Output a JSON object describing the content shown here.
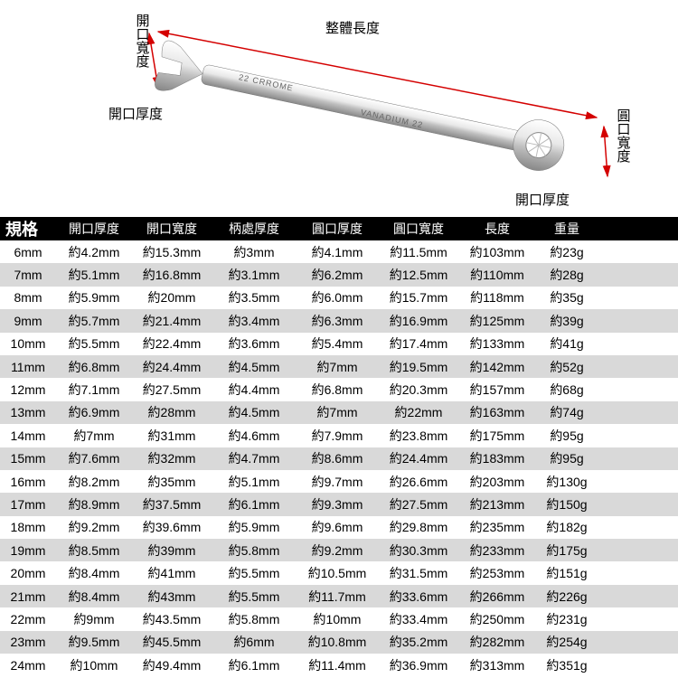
{
  "diagram": {
    "labels": {
      "total_length": "整體長度",
      "open_width_left": "開口寬度",
      "open_thick_left": "開口厚度",
      "ring_width_right": "圓口寬度",
      "open_thick_right": "開口厚度",
      "engraving1": "22    CRROME",
      "engraving2": "VANADIUM    22"
    },
    "colors": {
      "arrow": "#d40000",
      "metal_light": "#f4f4f4",
      "metal_mid": "#cfcfcf",
      "metal_dark": "#9a9a9a",
      "text": "#000000"
    }
  },
  "table": {
    "headers": {
      "spec": "規格",
      "c1": "開口厚度",
      "c2": "開口寬度",
      "c3": "柄處厚度",
      "c4": "圓口厚度",
      "c5": "圓口寬度",
      "c6": "長度",
      "c7": "重量"
    },
    "rows": [
      {
        "spec": "6mm",
        "c1": "約4.2mm",
        "c2": "約15.3mm",
        "c3": "約3mm",
        "c4": "約4.1mm",
        "c5": "約11.5mm",
        "c6": "約103mm",
        "c7": "約23g"
      },
      {
        "spec": "7mm",
        "c1": "約5.1mm",
        "c2": "約16.8mm",
        "c3": "約3.1mm",
        "c4": "約6.2mm",
        "c5": "約12.5mm",
        "c6": "約110mm",
        "c7": "約28g"
      },
      {
        "spec": "8mm",
        "c1": "約5.9mm",
        "c2": "約20mm",
        "c3": "約3.5mm",
        "c4": "約6.0mm",
        "c5": "約15.7mm",
        "c6": "約118mm",
        "c7": "約35g"
      },
      {
        "spec": "9mm",
        "c1": "約5.7mm",
        "c2": "約21.4mm",
        "c3": "約3.4mm",
        "c4": "約6.3mm",
        "c5": "約16.9mm",
        "c6": "約125mm",
        "c7": "約39g"
      },
      {
        "spec": "10mm",
        "c1": "約5.5mm",
        "c2": "約22.4mm",
        "c3": "約3.6mm",
        "c4": "約5.4mm",
        "c5": "約17.4mm",
        "c6": "約133mm",
        "c7": "約41g"
      },
      {
        "spec": "11mm",
        "c1": "約6.8mm",
        "c2": "約24.4mm",
        "c3": "約4.5mm",
        "c4": "約7mm",
        "c5": "約19.5mm",
        "c6": "約142mm",
        "c7": "約52g"
      },
      {
        "spec": "12mm",
        "c1": "約7.1mm",
        "c2": "約27.5mm",
        "c3": "約4.4mm",
        "c4": "約6.8mm",
        "c5": "約20.3mm",
        "c6": "約157mm",
        "c7": "約68g"
      },
      {
        "spec": "13mm",
        "c1": "約6.9mm",
        "c2": "約28mm",
        "c3": "約4.5mm",
        "c4": "約7mm",
        "c5": "約22mm",
        "c6": "約163mm",
        "c7": "約74g"
      },
      {
        "spec": "14mm",
        "c1": "約7mm",
        "c2": "約31mm",
        "c3": "約4.6mm",
        "c4": "約7.9mm",
        "c5": "約23.8mm",
        "c6": "約175mm",
        "c7": "約95g"
      },
      {
        "spec": "15mm",
        "c1": "約7.6mm",
        "c2": "約32mm",
        "c3": "約4.7mm",
        "c4": "約8.6mm",
        "c5": "約24.4mm",
        "c6": "約183mm",
        "c7": "約95g"
      },
      {
        "spec": "16mm",
        "c1": "約8.2mm",
        "c2": "約35mm",
        "c3": "約5.1mm",
        "c4": "約9.7mm",
        "c5": "約26.6mm",
        "c6": "約203mm",
        "c7": "約130g"
      },
      {
        "spec": "17mm",
        "c1": "約8.9mm",
        "c2": "約37.5mm",
        "c3": "約6.1mm",
        "c4": "約9.3mm",
        "c5": "約27.5mm",
        "c6": "約213mm",
        "c7": "約150g"
      },
      {
        "spec": "18mm",
        "c1": "約9.2mm",
        "c2": "約39.6mm",
        "c3": "約5.9mm",
        "c4": "約9.6mm",
        "c5": "約29.8mm",
        "c6": "約235mm",
        "c7": "約182g"
      },
      {
        "spec": "19mm",
        "c1": "約8.5mm",
        "c2": "約39mm",
        "c3": "約5.8mm",
        "c4": "約9.2mm",
        "c5": "約30.3mm",
        "c6": "約233mm",
        "c7": "約175g"
      },
      {
        "spec": "20mm",
        "c1": "約8.4mm",
        "c2": "約41mm",
        "c3": "約5.5mm",
        "c4": "約10.5mm",
        "c5": "約31.5mm",
        "c6": "約253mm",
        "c7": "約151g"
      },
      {
        "spec": "21mm",
        "c1": "約8.4mm",
        "c2": "約43mm",
        "c3": "約5.5mm",
        "c4": "約11.7mm",
        "c5": "約33.6mm",
        "c6": "約266mm",
        "c7": "約226g"
      },
      {
        "spec": "22mm",
        "c1": "約9mm",
        "c2": "約43.5mm",
        "c3": "約5.8mm",
        "c4": "約10mm",
        "c5": "約33.4mm",
        "c6": "約250mm",
        "c7": "約231g"
      },
      {
        "spec": "23mm",
        "c1": "約9.5mm",
        "c2": "約45.5mm",
        "c3": "約6mm",
        "c4": "約10.8mm",
        "c5": "約35.2mm",
        "c6": "約282mm",
        "c7": "約254g"
      },
      {
        "spec": "24mm",
        "c1": "約10mm",
        "c2": "約49.4mm",
        "c3": "約6.1mm",
        "c4": "約11.4mm",
        "c5": "約36.9mm",
        "c6": "約313mm",
        "c7": "約351g"
      }
    ],
    "row_bg_alt": "#d9d9d9",
    "header_bg": "#000000",
    "header_color": "#ffffff",
    "font_size": 14
  }
}
